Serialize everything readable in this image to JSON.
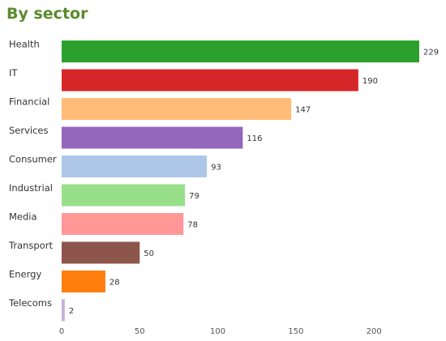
{
  "title": "By sector",
  "chart_data": {
    "type": "bar",
    "orientation": "horizontal",
    "title": "By sector",
    "categories": [
      "Health",
      "IT",
      "Financial",
      "Services",
      "Consumer",
      "Industrial",
      "Media",
      "Transport",
      "Energy",
      "Telecoms"
    ],
    "values": [
      229,
      190,
      147,
      116,
      93,
      79,
      78,
      50,
      28,
      2
    ],
    "colors": [
      "#2ca02c",
      "#d62728",
      "#ffbb78",
      "#9467bd",
      "#aec7e8",
      "#98df8a",
      "#ff9896",
      "#8c564b",
      "#ff7f0e",
      "#c5b0d5"
    ],
    "xticks": [
      0,
      50,
      100,
      150,
      200
    ],
    "xlim": [
      0,
      229
    ],
    "xlabel": "",
    "ylabel": "",
    "grid": false,
    "legend": "none",
    "data_labels": true
  }
}
